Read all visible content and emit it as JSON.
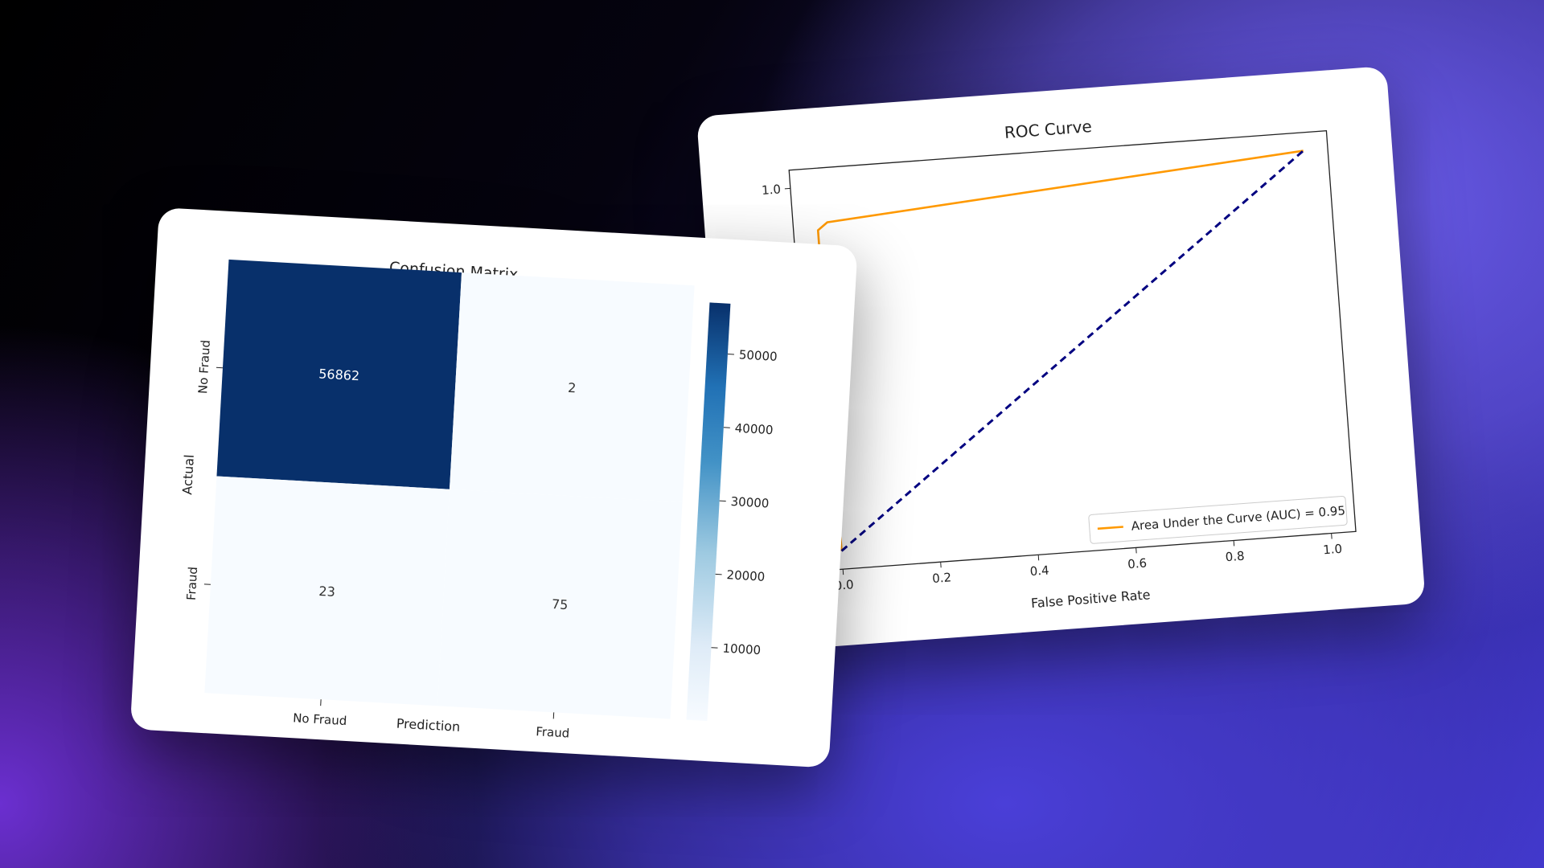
{
  "chart_data": [
    {
      "type": "heatmap",
      "title": "Confusion Matrix",
      "xlabel": "Prediction",
      "ylabel": "Actual",
      "x_categories": [
        "No Fraud",
        "Fraud"
      ],
      "y_categories": [
        "No Fraud",
        "Fraud"
      ],
      "values": [
        [
          56862,
          2
        ],
        [
          23,
          75
        ]
      ],
      "colorbar_ticks": [
        "10000",
        "20000",
        "30000",
        "40000",
        "50000"
      ],
      "colorbar_range": [
        0,
        56862
      ],
      "colormap": [
        "#f7fbff",
        "#deebf7",
        "#9ecae1",
        "#4292c6",
        "#2171b5",
        "#08306b"
      ]
    },
    {
      "type": "line",
      "title": "ROC Curve",
      "xlabel": "False Positive Rate",
      "ylabel": "",
      "xlim": [
        -0.05,
        1.05
      ],
      "ylim": [
        -0.05,
        1.05
      ],
      "x_ticks": [
        "0.0",
        "0.2",
        "0.4",
        "0.6",
        "0.8",
        "1.0"
      ],
      "y_ticks": [
        "1.0"
      ],
      "series": [
        {
          "name": "Area Under the Curve (AUC) = 0.95",
          "color": "#ff9900",
          "x": [
            0.0,
            0.0,
            0.02,
            1.0
          ],
          "y": [
            0.0,
            0.88,
            0.9,
            1.0
          ]
        },
        {
          "color": "#000080",
          "dashed": true,
          "x": [
            0.0,
            1.0
          ],
          "y": [
            0.0,
            1.0
          ]
        }
      ],
      "legend_position": "bottom-right",
      "grid": false
    }
  ]
}
